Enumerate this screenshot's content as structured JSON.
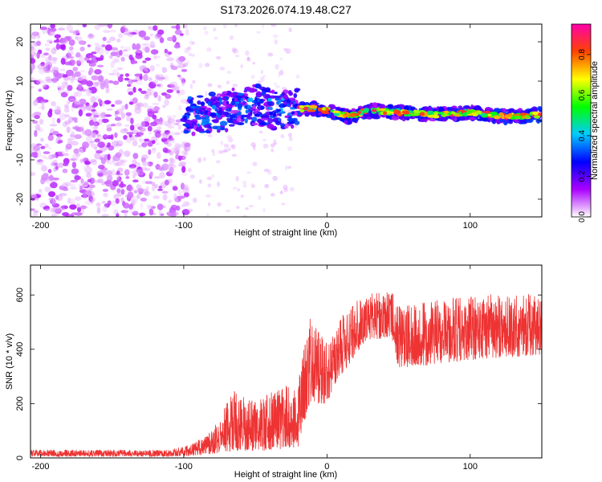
{
  "title": "S173.2026.074.19.48.C27",
  "chart_data": [
    {
      "type": "heatmap",
      "xlabel": "Height of straight line (km)",
      "ylabel": "Frequency (Hz)",
      "xlim": [
        -207,
        150
      ],
      "ylim": [
        -24.5,
        24.5
      ],
      "xticks": [
        -200,
        -100,
        0,
        100
      ],
      "yticks": [
        -20,
        -10,
        0,
        10,
        20
      ],
      "ridge": [
        {
          "x": -100,
          "y": 0.5
        },
        {
          "x": -90,
          "y": 1.5
        },
        {
          "x": -75,
          "y": 2.0
        },
        {
          "x": -60,
          "y": 3.5
        },
        {
          "x": -50,
          "y": 4.0
        },
        {
          "x": -40,
          "y": 3.0
        },
        {
          "x": -30,
          "y": 2.5
        },
        {
          "x": -20,
          "y": 3.0
        },
        {
          "x": -10,
          "y": 3.0
        },
        {
          "x": 0,
          "y": 2.5
        },
        {
          "x": 15,
          "y": 1.0
        },
        {
          "x": 30,
          "y": 2.5
        },
        {
          "x": 50,
          "y": 2.0
        },
        {
          "x": 75,
          "y": 1.5
        },
        {
          "x": 100,
          "y": 2.0
        },
        {
          "x": 125,
          "y": 1.0
        },
        {
          "x": 150,
          "y": 1.5
        }
      ],
      "colorbar": {
        "label": "Normalized spectral amplitude",
        "range": [
          0,
          0.95
        ],
        "ticks": [
          0.0,
          0.2,
          0.4,
          0.6,
          0.8
        ],
        "tick_labels": [
          "0.0",
          "0.2",
          "0.4",
          "0.6",
          "0.8"
        ],
        "colors": [
          "#ffffff",
          "#aa00ff",
          "#0000ff",
          "#00ccff",
          "#00ff00",
          "#ffff00",
          "#ff4400",
          "#ff00aa"
        ]
      }
    },
    {
      "type": "line",
      "xlabel": "Height of straight line (km)",
      "ylabel": "SNR (10 * v/v)",
      "xlim": [
        -207,
        150
      ],
      "ylim": [
        0,
        710
      ],
      "xticks": [
        -200,
        -100,
        0,
        100
      ],
      "yticks": [
        0,
        200,
        400,
        600
      ],
      "color": "#ee3333",
      "envelope": [
        {
          "x": -207,
          "lo": 5,
          "hi": 30
        },
        {
          "x": -110,
          "lo": 5,
          "hi": 30
        },
        {
          "x": -95,
          "lo": 8,
          "hi": 50
        },
        {
          "x": -80,
          "lo": 15,
          "hi": 100
        },
        {
          "x": -65,
          "lo": 25,
          "hi": 250
        },
        {
          "x": -50,
          "lo": 25,
          "hi": 210
        },
        {
          "x": -35,
          "lo": 30,
          "hi": 260
        },
        {
          "x": -20,
          "lo": 40,
          "hi": 280
        },
        {
          "x": -12,
          "lo": 200,
          "hi": 550
        },
        {
          "x": 0,
          "lo": 200,
          "hi": 420
        },
        {
          "x": 10,
          "lo": 300,
          "hi": 520
        },
        {
          "x": 25,
          "lo": 420,
          "hi": 600
        },
        {
          "x": 45,
          "lo": 450,
          "hi": 620
        },
        {
          "x": 50,
          "lo": 330,
          "hi": 560
        },
        {
          "x": 100,
          "lo": 360,
          "hi": 600
        },
        {
          "x": 150,
          "lo": 380,
          "hi": 610
        }
      ]
    }
  ]
}
